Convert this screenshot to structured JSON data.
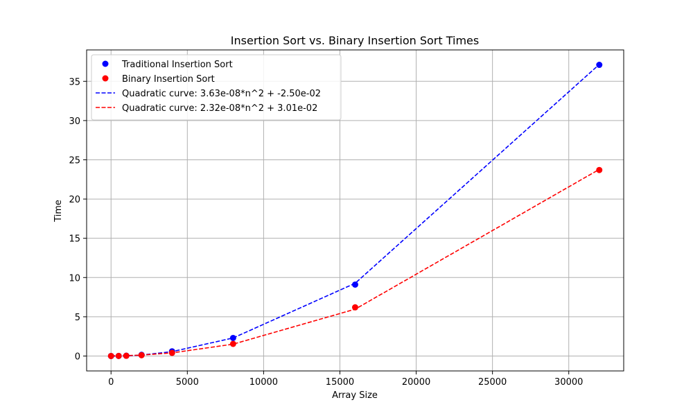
{
  "chart_data": {
    "type": "scatter",
    "title": "Insertion Sort vs. Binary Insertion Sort  Times",
    "xlabel": "Array Size",
    "ylabel": "Time",
    "xlim": [
      -1600,
      33600
    ],
    "ylim": [
      -1.9,
      39.0
    ],
    "x_ticks": [
      0,
      5000,
      10000,
      15000,
      20000,
      25000,
      30000
    ],
    "y_ticks": [
      0,
      5,
      10,
      15,
      20,
      25,
      30,
      35
    ],
    "grid": true,
    "legend_position": "top-left",
    "x": [
      0,
      500,
      1000,
      2000,
      4000,
      8000,
      16000,
      32000
    ],
    "series": [
      {
        "name": "Traditional Insertion Sort",
        "kind": "scatter",
        "color": "#0000ff",
        "values": [
          0.0,
          0.01,
          0.04,
          0.15,
          0.6,
          2.3,
          9.1,
          37.1
        ]
      },
      {
        "name": "Binary Insertion Sort",
        "kind": "scatter",
        "color": "#ff0000",
        "values": [
          0.0,
          0.01,
          0.03,
          0.1,
          0.4,
          1.55,
          6.2,
          23.7
        ]
      },
      {
        "name": "Quadratic curve: 3.63e-08*n^2 + -2.50e-02",
        "kind": "line",
        "style": "dashed",
        "color": "#0000ff",
        "values": [
          -0.02,
          -0.02,
          0.01,
          0.12,
          0.56,
          2.3,
          9.27,
          37.15
        ]
      },
      {
        "name": "Quadratic curve: 2.32e-08*n^2 + 3.01e-02",
        "kind": "line",
        "style": "dashed",
        "color": "#ff0000",
        "values": [
          0.03,
          0.04,
          0.05,
          0.12,
          0.4,
          1.51,
          5.97,
          23.78
        ]
      }
    ]
  }
}
